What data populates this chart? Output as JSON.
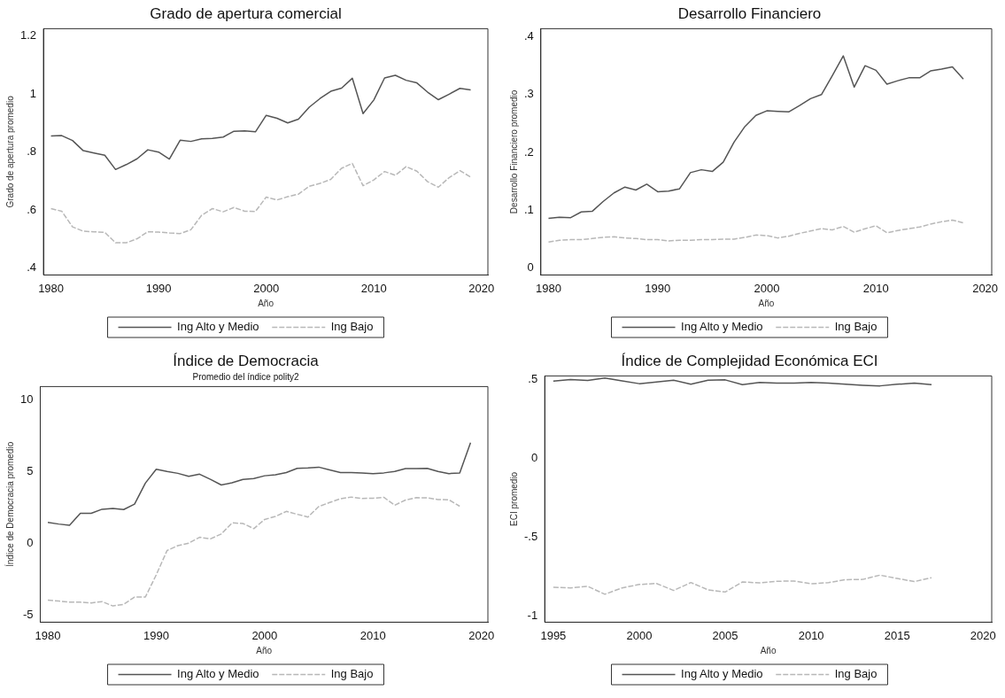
{
  "chart_data": [
    {
      "type": "line",
      "title": "Grado de apertura comercial",
      "xlabel": "Año",
      "ylabel": "Grado de apertura promedio",
      "xlim": [
        1979.3,
        2020.6
      ],
      "xticks": [
        1980,
        1990,
        2000,
        2010,
        2020
      ],
      "ylim": [
        0.376,
        1.226
      ],
      "yticks": [
        {
          "value": 0.4,
          "label": ".4"
        },
        {
          "value": 0.6,
          "label": ".6"
        },
        {
          "value": 0.8,
          "label": ".8"
        },
        1,
        1.2
      ],
      "grid": false,
      "legend": "bottom",
      "marker": "none",
      "series": [
        {
          "name": "Ing Alto y Medio",
          "color": "#555555",
          "line_style": "solid",
          "x": [
            1980,
            1981,
            1982,
            1983,
            1984,
            1985,
            1986,
            1987,
            1988,
            1989,
            1990,
            1991,
            1992,
            1993,
            1994,
            1995,
            1996,
            1997,
            1998,
            1999,
            2000,
            2001,
            2002,
            2003,
            2004,
            2005,
            2006,
            2007,
            2008,
            2009,
            2010,
            2011,
            2012,
            2013,
            2014,
            2015,
            2016,
            2017,
            2018,
            2019
          ],
          "values": [
            0.856,
            0.857,
            0.84,
            0.805,
            0.797,
            0.789,
            0.74,
            0.757,
            0.777,
            0.808,
            0.8,
            0.776,
            0.841,
            0.837,
            0.846,
            0.847,
            0.852,
            0.872,
            0.873,
            0.87,
            0.927,
            0.917,
            0.901,
            0.914,
            0.955,
            0.985,
            1.01,
            1.021,
            1.055,
            0.933,
            0.98,
            1.056,
            1.065,
            1.048,
            1.039,
            1.007,
            0.981,
            1.0,
            1.02,
            1.015
          ]
        },
        {
          "name": "Ing Bajo",
          "color": "#b8b8b8",
          "line_style": "dashed",
          "x": [
            1980,
            1981,
            1982,
            1983,
            1984,
            1985,
            1986,
            1987,
            1988,
            1989,
            1990,
            1991,
            1992,
            1993,
            1994,
            1995,
            1996,
            1997,
            1998,
            1999,
            2000,
            2001,
            2002,
            2003,
            2004,
            2005,
            2006,
            2007,
            2008,
            2009,
            2010,
            2011,
            2012,
            2013,
            2014,
            2015,
            2016,
            2017,
            2018,
            2019
          ],
          "values": [
            0.605,
            0.596,
            0.542,
            0.527,
            0.525,
            0.523,
            0.487,
            0.487,
            0.501,
            0.525,
            0.524,
            0.521,
            0.519,
            0.532,
            0.582,
            0.605,
            0.594,
            0.609,
            0.596,
            0.595,
            0.645,
            0.635,
            0.646,
            0.655,
            0.682,
            0.692,
            0.706,
            0.744,
            0.761,
            0.684,
            0.704,
            0.733,
            0.72,
            0.75,
            0.734,
            0.698,
            0.679,
            0.712,
            0.736,
            0.714
          ]
        }
      ]
    },
    {
      "type": "line",
      "title": "Desarrollo Financiero",
      "xlabel": "Año",
      "ylabel": "Desarrollo Financiero promedio",
      "xlim": [
        1979.3,
        2020.6
      ],
      "xticks": [
        1980,
        1990,
        2000,
        2010,
        2020
      ],
      "ylim": [
        -0.012,
        0.414
      ],
      "yticks": [
        0,
        {
          "value": 0.1,
          "label": ".1"
        },
        {
          "value": 0.2,
          "label": ".2"
        },
        {
          "value": 0.3,
          "label": ".3"
        },
        {
          "value": 0.4,
          "label": ".4"
        }
      ],
      "grid": false,
      "legend": "bottom",
      "marker": "none",
      "series": [
        {
          "name": "Ing Alto y Medio",
          "color": "#555555",
          "line_style": "solid",
          "x": [
            1980,
            1981,
            1982,
            1983,
            1984,
            1985,
            1986,
            1987,
            1988,
            1989,
            1990,
            1991,
            1992,
            1993,
            1994,
            1995,
            1996,
            1997,
            1998,
            1999,
            2000,
            2001,
            2002,
            2003,
            2004,
            2005,
            2006,
            2007,
            2008,
            2009,
            2010,
            2011,
            2012,
            2013,
            2014,
            2015,
            2016,
            2017,
            2018
          ],
          "values": [
            0.086,
            0.088,
            0.087,
            0.097,
            0.098,
            0.115,
            0.13,
            0.14,
            0.135,
            0.145,
            0.132,
            0.133,
            0.137,
            0.165,
            0.17,
            0.167,
            0.183,
            0.218,
            0.245,
            0.264,
            0.272,
            0.271,
            0.27,
            0.281,
            0.293,
            0.3,
            0.333,
            0.367,
            0.313,
            0.35,
            0.342,
            0.318,
            0.324,
            0.329,
            0.329,
            0.341,
            0.344,
            0.348,
            0.327
          ]
        },
        {
          "name": "Ing Bajo",
          "color": "#b8b8b8",
          "line_style": "dashed",
          "x": [
            1980,
            1981,
            1982,
            1983,
            1984,
            1985,
            1986,
            1987,
            1988,
            1989,
            1990,
            1991,
            1992,
            1993,
            1994,
            1995,
            1996,
            1997,
            1998,
            1999,
            2000,
            2001,
            2002,
            2003,
            2004,
            2005,
            2006,
            2007,
            2008,
            2009,
            2010,
            2011,
            2012,
            2013,
            2014,
            2015,
            2016,
            2017,
            2018
          ],
          "values": [
            0.045,
            0.048,
            0.049,
            0.049,
            0.051,
            0.053,
            0.054,
            0.052,
            0.051,
            0.049,
            0.049,
            0.047,
            0.048,
            0.048,
            0.049,
            0.049,
            0.05,
            0.05,
            0.053,
            0.057,
            0.056,
            0.052,
            0.055,
            0.06,
            0.064,
            0.068,
            0.066,
            0.072,
            0.062,
            0.068,
            0.073,
            0.061,
            0.065,
            0.068,
            0.071,
            0.076,
            0.08,
            0.083,
            0.078
          ]
        }
      ]
    },
    {
      "type": "line",
      "title": "Índice de Democracia",
      "subtitle": "Promedio del índice polity2",
      "xlabel": "Año",
      "ylabel": "Índice de Democracia promedio",
      "xlim": [
        1979.3,
        2020.6
      ],
      "xticks": [
        1980,
        1990,
        2000,
        2010,
        2020
      ],
      "ylim": [
        -5.5,
        10.9
      ],
      "yticks": [
        -5,
        0,
        5,
        10
      ],
      "grid": false,
      "legend": "bottom",
      "marker": "none",
      "series": [
        {
          "name": "Ing Alto y Medio",
          "color": "#555555",
          "line_style": "solid",
          "x": [
            1980,
            1981,
            1982,
            1983,
            1984,
            1985,
            1986,
            1987,
            1988,
            1989,
            1990,
            1991,
            1992,
            1993,
            1994,
            1995,
            1996,
            1997,
            1998,
            1999,
            2000,
            2001,
            2002,
            2003,
            2004,
            2005,
            2006,
            2007,
            2008,
            2009,
            2010,
            2011,
            2012,
            2013,
            2014,
            2015,
            2016,
            2017,
            2018,
            2019
          ],
          "values": [
            1.44,
            1.33,
            1.24,
            2.08,
            2.08,
            2.36,
            2.42,
            2.34,
            2.72,
            4.18,
            5.14,
            4.99,
            4.86,
            4.65,
            4.8,
            4.44,
            4.05,
            4.2,
            4.44,
            4.5,
            4.69,
            4.76,
            4.91,
            5.21,
            5.23,
            5.29,
            5.1,
            4.91,
            4.91,
            4.89,
            4.84,
            4.89,
            4.99,
            5.19,
            5.19,
            5.21,
            4.99,
            4.84,
            4.89,
            6.99
          ]
        },
        {
          "name": "Ing Bajo",
          "color": "#b8b8b8",
          "line_style": "dashed",
          "x": [
            1980,
            1981,
            1982,
            1983,
            1984,
            1985,
            1986,
            1987,
            1988,
            1989,
            1990,
            1991,
            1992,
            1993,
            1994,
            1995,
            1996,
            1997,
            1998,
            1999,
            2000,
            2001,
            2002,
            2003,
            2004,
            2005,
            2006,
            2007,
            2008,
            2009,
            2010,
            2011,
            2012,
            2013,
            2014,
            2015,
            2016,
            2017,
            2018
          ],
          "values": [
            -3.96,
            -4.03,
            -4.11,
            -4.11,
            -4.16,
            -4.07,
            -4.37,
            -4.26,
            -3.75,
            -3.75,
            -2.21,
            -0.51,
            -0.17,
            0.0,
            0.41,
            0.3,
            0.64,
            1.41,
            1.37,
            1.01,
            1.65,
            1.86,
            2.21,
            2.01,
            1.82,
            2.55,
            2.83,
            3.09,
            3.21,
            3.11,
            3.13,
            3.19,
            2.64,
            3.0,
            3.17,
            3.15,
            3.04,
            3.02,
            2.57
          ]
        }
      ]
    },
    {
      "type": "line",
      "title": "Índice de Complejidad Económica ECI",
      "xlabel": "Año",
      "ylabel": "ECI promedio",
      "xlim": [
        1994.5,
        2020.5
      ],
      "xticks": [
        1995,
        2000,
        2005,
        2010,
        2015,
        2020
      ],
      "ylim": [
        -1.04,
        0.52
      ],
      "yticks": [
        -1,
        {
          "value": -0.5,
          "label": "-.5"
        },
        0,
        {
          "value": 0.5,
          "label": ".5"
        }
      ],
      "grid": false,
      "legend": "bottom",
      "marker": "none",
      "series": [
        {
          "name": "Ing Alto y Medio",
          "color": "#555555",
          "line_style": "solid",
          "x": [
            1995,
            1996,
            1997,
            1998,
            1999,
            2000,
            2001,
            2002,
            2003,
            2004,
            2005,
            2006,
            2007,
            2008,
            2009,
            2010,
            2011,
            2012,
            2013,
            2014,
            2015,
            2016,
            2017
          ],
          "values": [
            0.487,
            0.497,
            0.491,
            0.507,
            0.489,
            0.471,
            0.481,
            0.493,
            0.467,
            0.493,
            0.495,
            0.465,
            0.479,
            0.475,
            0.475,
            0.479,
            0.475,
            0.467,
            0.461,
            0.457,
            0.467,
            0.475,
            0.465
          ]
        },
        {
          "name": "Ing Bajo",
          "color": "#b8b8b8",
          "line_style": "dashed",
          "x": [
            1995,
            1996,
            1997,
            1998,
            1999,
            2000,
            2001,
            2002,
            2003,
            2004,
            2005,
            2006,
            2007,
            2008,
            2009,
            2010,
            2011,
            2012,
            2013,
            2014,
            2015,
            2016,
            2017
          ],
          "values": [
            -0.819,
            -0.823,
            -0.813,
            -0.863,
            -0.823,
            -0.801,
            -0.795,
            -0.839,
            -0.789,
            -0.835,
            -0.849,
            -0.785,
            -0.791,
            -0.781,
            -0.779,
            -0.797,
            -0.789,
            -0.771,
            -0.769,
            -0.742,
            -0.763,
            -0.783,
            -0.758
          ]
        }
      ]
    }
  ]
}
